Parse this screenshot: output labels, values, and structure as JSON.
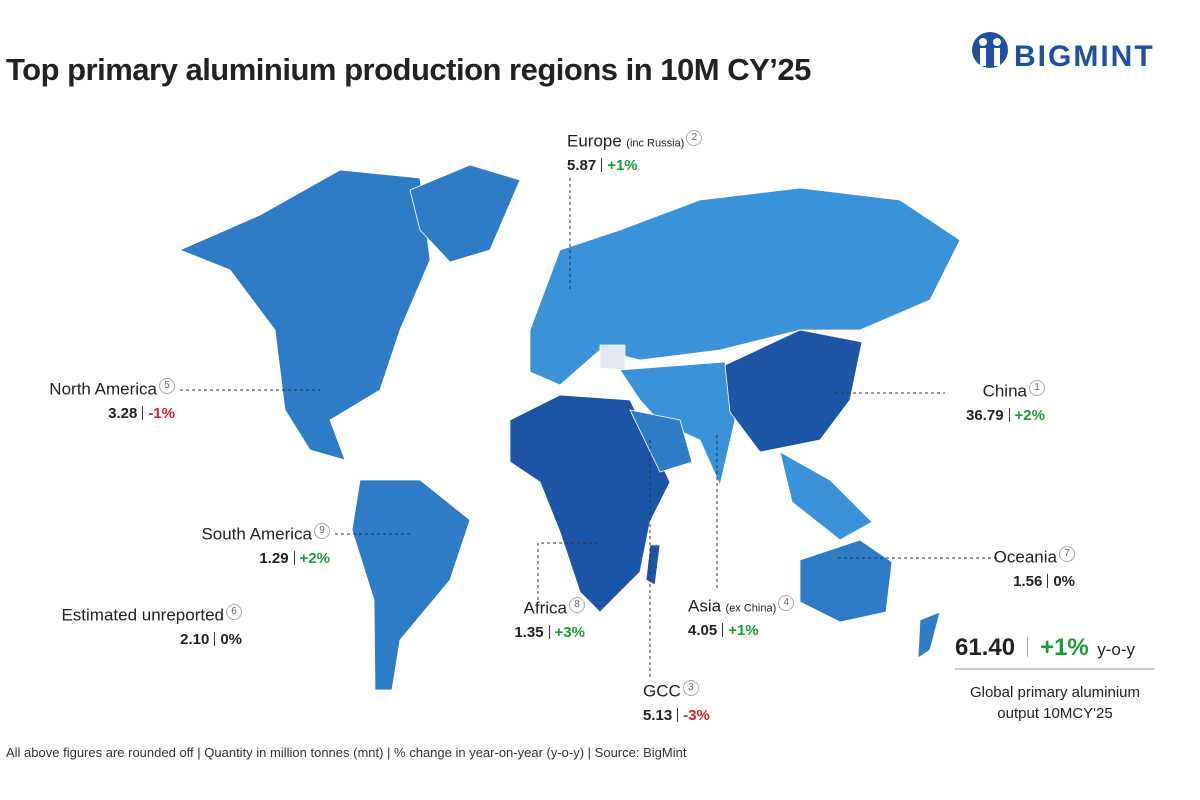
{
  "header": {
    "title": "Top primary aluminium production regions in 10M CY’25",
    "logo": "BIGMINT"
  },
  "regions": [
    {
      "name": "Europe",
      "qualifier": "(inc Russia)",
      "rank": "2",
      "quantity": "5.87",
      "change": "+1%",
      "change_color": "#1a9a3a"
    },
    {
      "name": "China",
      "rank": "1",
      "quantity": "36.79",
      "change": "+2%",
      "change_color": "#1a9a3a"
    },
    {
      "name": "North America",
      "rank": "5",
      "quantity": "3.28",
      "change": "-1%",
      "change_color": "#d0202a"
    },
    {
      "name": "South America",
      "rank": "9",
      "quantity": "1.29",
      "change": "+2%",
      "change_color": "#1a9a3a"
    },
    {
      "name": "Estimated unreported",
      "rank": "6",
      "quantity": "2.10",
      "change": "0%",
      "change_color": "#222222"
    },
    {
      "name": "Africa",
      "rank": "8",
      "quantity": "1.35",
      "change": "+3%",
      "change_color": "#1a9a3a"
    },
    {
      "name": "Asia",
      "qualifier": "(ex China)",
      "rank": "4",
      "quantity": "4.05",
      "change": "+1%",
      "change_color": "#1a9a3a"
    },
    {
      "name": "Oceania",
      "rank": "7",
      "quantity": "1.56",
      "change": "0%",
      "change_color": "#222222"
    },
    {
      "name": "GCC",
      "rank": "3",
      "quantity": "5.13",
      "change": "-3%",
      "change_color": "#d0202a"
    }
  ],
  "total": {
    "quantity": "61.40",
    "change": "+1%",
    "unit": "y-o-y",
    "caption": [
      "Global primary aluminium",
      "output 10MCY'25"
    ]
  },
  "footer": "All above figures are rounded off | Quantity in million tonnes (mnt) | % change in year-on-year (y-o-y) | Source: BigMint"
}
